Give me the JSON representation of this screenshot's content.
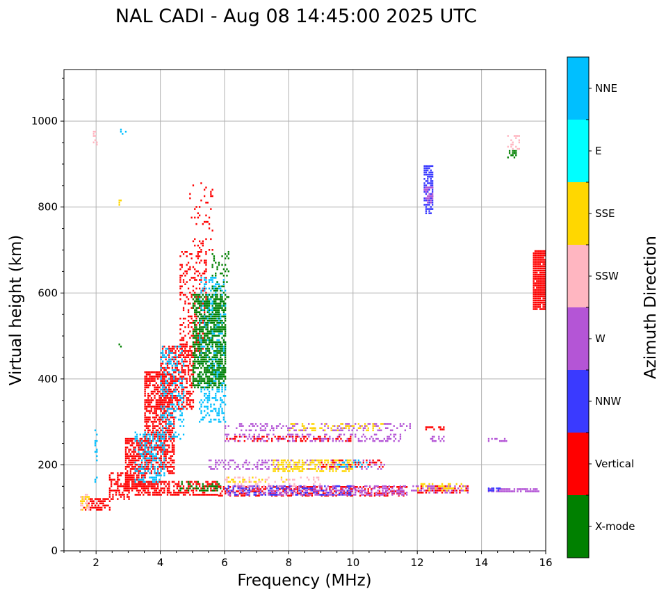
{
  "chart_data": {
    "type": "scatter",
    "title": "NAL CADI - Aug 08 14:45:00 2025 UTC",
    "xlabel": "Frequency (MHz)",
    "ylabel": "Virtual height (km)",
    "xlim": [
      1,
      16
    ],
    "ylim": [
      0,
      1120
    ],
    "xticks": [
      2,
      4,
      6,
      8,
      10,
      12,
      14,
      16
    ],
    "yticks": [
      0,
      200,
      400,
      600,
      800,
      1000
    ],
    "grid": true,
    "colorbar": {
      "label": "Azimuth Direction",
      "categories": [
        {
          "name": "X-mode",
          "color": "#008000"
        },
        {
          "name": "Vertical",
          "color": "#ff0000"
        },
        {
          "name": "NNW",
          "color": "#3a3aff"
        },
        {
          "name": "W",
          "color": "#b455d6"
        },
        {
          "name": "SSW",
          "color": "#ffb6c1"
        },
        {
          "name": "SSE",
          "color": "#ffd700"
        },
        {
          "name": "E",
          "color": "#00ffff"
        },
        {
          "name": "NNE",
          "color": "#00bfff"
        }
      ]
    },
    "regions": [
      {
        "category": "Vertical",
        "f": [
          1.6,
          2.4
        ],
        "h": [
          95,
          125
        ],
        "density": 0.6
      },
      {
        "category": "SSW",
        "f": [
          1.5,
          1.8
        ],
        "h": [
          95,
          135
        ],
        "density": 0.5
      },
      {
        "category": "SSE",
        "f": [
          1.5,
          1.8
        ],
        "h": [
          95,
          130
        ],
        "density": 0.3
      },
      {
        "category": "Vertical",
        "f": [
          2.4,
          3.0
        ],
        "h": [
          120,
          185
        ],
        "density": 0.5
      },
      {
        "category": "Vertical",
        "f": [
          2.9,
          3.5
        ],
        "h": [
          140,
          265
        ],
        "density": 0.75
      },
      {
        "category": "Vertical",
        "f": [
          3.5,
          4.4
        ],
        "h": [
          180,
          420
        ],
        "density": 0.6
      },
      {
        "category": "Vertical",
        "f": [
          4.0,
          5.0
        ],
        "h": [
          330,
          480
        ],
        "density": 0.55
      },
      {
        "category": "Vertical",
        "f": [
          4.6,
          5.4
        ],
        "h": [
          450,
          700
        ],
        "density": 0.3
      },
      {
        "category": "Vertical",
        "f": [
          4.9,
          5.6
        ],
        "h": [
          690,
          860
        ],
        "density": 0.12
      },
      {
        "category": "NNE",
        "f": [
          3.2,
          4.1
        ],
        "h": [
          160,
          280
        ],
        "density": 0.35
      },
      {
        "category": "NNE",
        "f": [
          4.0,
          4.7
        ],
        "h": [
          260,
          480
        ],
        "density": 0.25
      },
      {
        "category": "NNE",
        "f": [
          5.2,
          6.0
        ],
        "h": [
          300,
          640
        ],
        "density": 0.35
      },
      {
        "category": "X-mode",
        "f": [
          5.0,
          6.0
        ],
        "h": [
          380,
          600
        ],
        "density": 0.6
      },
      {
        "category": "X-mode",
        "f": [
          5.6,
          6.1
        ],
        "h": [
          580,
          700
        ],
        "density": 0.2
      },
      {
        "category": "Vertical",
        "f": [
          3.2,
          5.8
        ],
        "h": [
          130,
          165
        ],
        "density": 0.55
      },
      {
        "category": "X-mode",
        "f": [
          4.6,
          5.9
        ],
        "h": [
          140,
          165
        ],
        "density": 0.4
      },
      {
        "category": "Vertical",
        "f": [
          5.8,
          11.7
        ],
        "h": [
          128,
          150
        ],
        "density": 0.45
      },
      {
        "category": "W",
        "f": [
          6.0,
          11.7
        ],
        "h": [
          130,
          155
        ],
        "density": 0.45
      },
      {
        "category": "NNW",
        "f": [
          6.0,
          10.0
        ],
        "h": [
          130,
          155
        ],
        "density": 0.25
      },
      {
        "category": "SSW",
        "f": [
          6.0,
          9.0
        ],
        "h": [
          150,
          175
        ],
        "density": 0.2
      },
      {
        "category": "SSE",
        "f": [
          6.0,
          8.2
        ],
        "h": [
          160,
          175
        ],
        "density": 0.2
      },
      {
        "category": "Vertical",
        "f": [
          12.0,
          13.6
        ],
        "h": [
          135,
          155
        ],
        "density": 0.45
      },
      {
        "category": "W",
        "f": [
          11.8,
          13.6
        ],
        "h": [
          135,
          155
        ],
        "density": 0.45
      },
      {
        "category": "SSE",
        "f": [
          12.0,
          13.5
        ],
        "h": [
          140,
          160
        ],
        "density": 0.3
      },
      {
        "category": "W",
        "f": [
          14.2,
          15.8
        ],
        "h": [
          138,
          146
        ],
        "density": 0.7
      },
      {
        "category": "NNW",
        "f": [
          14.2,
          14.6
        ],
        "h": [
          140,
          148
        ],
        "density": 0.6
      },
      {
        "category": "W",
        "f": [
          5.5,
          11.0
        ],
        "h": [
          190,
          215
        ],
        "density": 0.3
      },
      {
        "category": "SSE",
        "f": [
          7.5,
          10.0
        ],
        "h": [
          185,
          215
        ],
        "density": 0.45
      },
      {
        "category": "Vertical",
        "f": [
          9.0,
          11.0
        ],
        "h": [
          195,
          215
        ],
        "density": 0.3
      },
      {
        "category": "NNE",
        "f": [
          9.5,
          10.5
        ],
        "h": [
          195,
          215
        ],
        "density": 0.3
      },
      {
        "category": "W",
        "f": [
          6.0,
          11.5
        ],
        "h": [
          255,
          275
        ],
        "density": 0.3
      },
      {
        "category": "Vertical",
        "f": [
          6.0,
          10.0
        ],
        "h": [
          255,
          270
        ],
        "density": 0.3
      },
      {
        "category": "W",
        "f": [
          6.0,
          11.8
        ],
        "h": [
          280,
          300
        ],
        "density": 0.3
      },
      {
        "category": "SSE",
        "f": [
          8.0,
          11.0
        ],
        "h": [
          280,
          300
        ],
        "density": 0.25
      },
      {
        "category": "Vertical",
        "f": [
          12.2,
          12.9
        ],
        "h": [
          282,
          292
        ],
        "density": 0.45
      },
      {
        "category": "W",
        "f": [
          12.4,
          12.9
        ],
        "h": [
          255,
          268
        ],
        "density": 0.45
      },
      {
        "category": "W",
        "f": [
          14.2,
          14.8
        ],
        "h": [
          255,
          265
        ],
        "density": 0.45
      },
      {
        "category": "NNW",
        "f": [
          12.2,
          12.5
        ],
        "h": [
          785,
          900
        ],
        "density": 0.7
      },
      {
        "category": "W",
        "f": [
          12.2,
          12.5
        ],
        "h": [
          810,
          850
        ],
        "density": 0.5
      },
      {
        "category": "SSW",
        "f": [
          14.8,
          15.2
        ],
        "h": [
          935,
          968
        ],
        "density": 0.35
      },
      {
        "category": "X-mode",
        "f": [
          14.8,
          15.2
        ],
        "h": [
          915,
          935
        ],
        "density": 0.3
      },
      {
        "category": "Vertical",
        "f": [
          15.6,
          16.0
        ],
        "h": [
          562,
          698
        ],
        "density": 0.95
      },
      {
        "category": "SSW",
        "f": [
          1.9,
          2.05
        ],
        "h": [
          945,
          980
        ],
        "density": 0.35
      },
      {
        "category": "NNE",
        "f": [
          2.7,
          2.9
        ],
        "h": [
          970,
          982
        ],
        "density": 0.3
      },
      {
        "category": "SSE",
        "f": [
          2.7,
          2.8
        ],
        "h": [
          805,
          820
        ],
        "density": 0.5
      },
      {
        "category": "X-mode",
        "f": [
          2.7,
          2.8
        ],
        "h": [
          475,
          485
        ],
        "density": 0.5
      },
      {
        "category": "NNE",
        "f": [
          1.95,
          2.05
        ],
        "h": [
          160,
          285
        ],
        "density": 0.3
      }
    ]
  }
}
